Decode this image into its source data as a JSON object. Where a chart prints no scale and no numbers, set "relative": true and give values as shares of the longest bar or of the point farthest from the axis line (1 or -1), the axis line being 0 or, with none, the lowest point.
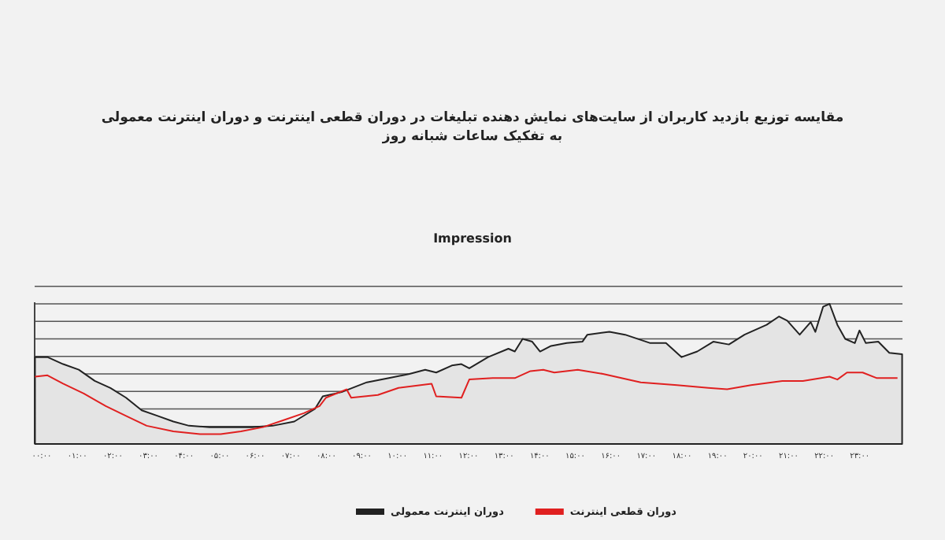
{
  "chart_data": {
    "type": "line",
    "title": "مقایسه توزیع بازدید کاربران از سایت‌های نمایش دهنده تبلیغات در دوران قطعی اینترنت و دوران اینترنت معمولی\nبه تفکیک ساعات شبانه روز",
    "subtitle": "Impression",
    "relative": true,
    "grid": true,
    "legend": "bottom",
    "xlim": [
      -0.2,
      24.2
    ],
    "xticks": [
      {
        "value": 0,
        "label": "۰۰:۰۰"
      },
      {
        "value": 1,
        "label": "۰۱:۰۰"
      },
      {
        "value": 2,
        "label": "۰۲:۰۰"
      },
      {
        "value": 3,
        "label": "۰۳:۰۰"
      },
      {
        "value": 4,
        "label": "۰۴:۰۰"
      },
      {
        "value": 5,
        "label": "۰۵:۰۰"
      },
      {
        "value": 6,
        "label": "۰۶:۰۰"
      },
      {
        "value": 7,
        "label": "۰۷:۰۰"
      },
      {
        "value": 8,
        "label": "۰۸:۰۰"
      },
      {
        "value": 9,
        "label": "۰۹:۰۰"
      },
      {
        "value": 10,
        "label": "۱۰:۰۰"
      },
      {
        "value": 11,
        "label": "۱۱:۰۰"
      },
      {
        "value": 12,
        "label": "۱۲:۰۰"
      },
      {
        "value": 13,
        "label": "۱۳:۰۰"
      },
      {
        "value": 14,
        "label": "۱۴:۰۰"
      },
      {
        "value": 15,
        "label": "۱۵:۰۰"
      },
      {
        "value": 16,
        "label": "۱۶:۰۰"
      },
      {
        "value": 17,
        "label": "۱۷:۰۰"
      },
      {
        "value": 18,
        "label": "۱۸:۰۰"
      },
      {
        "value": 19,
        "label": "۱۹:۰۰"
      },
      {
        "value": 20,
        "label": "۲۰:۰۰"
      },
      {
        "value": 21,
        "label": "۲۱:۰۰"
      },
      {
        "value": 22,
        "label": "۲۲:۰۰"
      },
      {
        "value": 23,
        "label": "۲۳:۰۰"
      }
    ],
    "series": [
      {
        "name": "دوران اینترنت معمولی",
        "type": "area",
        "color": "#222222",
        "x": [
          -0.19,
          0.16,
          0.6,
          1.04,
          1.49,
          1.93,
          2.37,
          2.81,
          3.26,
          3.7,
          4.14,
          4.72,
          5.47,
          5.91,
          6.49,
          7.1,
          7.68,
          7.9,
          8.43,
          9.14,
          9.76,
          10.34,
          10.78,
          11.09,
          11.53,
          11.8,
          12.02,
          12.55,
          13.12,
          13.3,
          13.52,
          13.79,
          14.01,
          14.32,
          14.76,
          15.2,
          15.34,
          15.96,
          16.4,
          17.11,
          17.55,
          17.99,
          18.43,
          18.88,
          19.32,
          19.76,
          20.38,
          20.73,
          20.96,
          21.31,
          21.62,
          21.75,
          21.97,
          22.15,
          22.37,
          22.59,
          22.86,
          22.99,
          23.17,
          23.52,
          23.83,
          24.19
        ],
        "values": [
          0.62,
          0.62,
          0.57,
          0.53,
          0.45,
          0.4,
          0.33,
          0.24,
          0.2,
          0.16,
          0.13,
          0.12,
          0.12,
          0.12,
          0.13,
          0.16,
          0.25,
          0.34,
          0.37,
          0.44,
          0.47,
          0.5,
          0.53,
          0.51,
          0.56,
          0.57,
          0.54,
          0.62,
          0.68,
          0.66,
          0.75,
          0.73,
          0.66,
          0.7,
          0.72,
          0.73,
          0.78,
          0.8,
          0.78,
          0.72,
          0.72,
          0.62,
          0.66,
          0.73,
          0.71,
          0.78,
          0.85,
          0.91,
          0.88,
          0.78,
          0.87,
          0.8,
          0.98,
          1.0,
          0.85,
          0.75,
          0.72,
          0.81,
          0.72,
          0.73,
          0.65,
          0.64
        ]
      },
      {
        "name": "دوران قطعی اینترنت",
        "color": "#e02020",
        "x": [
          -0.19,
          0.16,
          0.6,
          1.18,
          1.8,
          2.37,
          2.95,
          3.7,
          4.45,
          5.03,
          5.6,
          6.22,
          6.8,
          7.37,
          7.81,
          7.99,
          8.57,
          8.7,
          9.45,
          10.03,
          10.65,
          10.96,
          11.09,
          11.8,
          12.02,
          12.68,
          13.3,
          13.74,
          14.1,
          14.41,
          15.07,
          15.78,
          16.84,
          17.86,
          18.74,
          19.27,
          19.94,
          20.82,
          21.4,
          22.15,
          22.37,
          22.64,
          23.08,
          23.48,
          24.06
        ],
        "values": [
          0.48,
          0.49,
          0.43,
          0.36,
          0.27,
          0.2,
          0.13,
          0.09,
          0.07,
          0.07,
          0.09,
          0.12,
          0.17,
          0.22,
          0.27,
          0.33,
          0.39,
          0.33,
          0.35,
          0.4,
          0.42,
          0.43,
          0.34,
          0.33,
          0.46,
          0.47,
          0.47,
          0.52,
          0.53,
          0.51,
          0.53,
          0.5,
          0.44,
          0.42,
          0.4,
          0.39,
          0.42,
          0.45,
          0.45,
          0.48,
          0.46,
          0.51,
          0.51,
          0.47,
          0.47
        ]
      }
    ]
  }
}
